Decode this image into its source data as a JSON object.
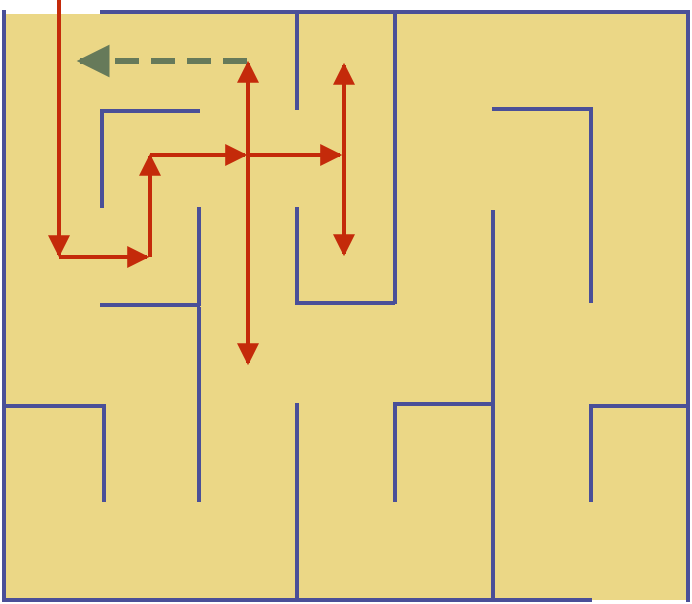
{
  "colors": {
    "floor": "#EBD786",
    "wall": "#4A4F98",
    "path": "#C42A0A",
    "hint": "#667A5A",
    "outside": "#FFFFFF"
  },
  "maze": {
    "columns": 7,
    "rows": 6,
    "entrance": "top-left",
    "exit": "bottom-right"
  },
  "solver": {
    "step_direction_icons": [
      "down-arrow",
      "right-arrow",
      "up-arrow",
      "right-arrow",
      "right-arrow",
      "up-down-arrow",
      "up-down-arrow",
      "left-dashed-arrow"
    ]
  }
}
